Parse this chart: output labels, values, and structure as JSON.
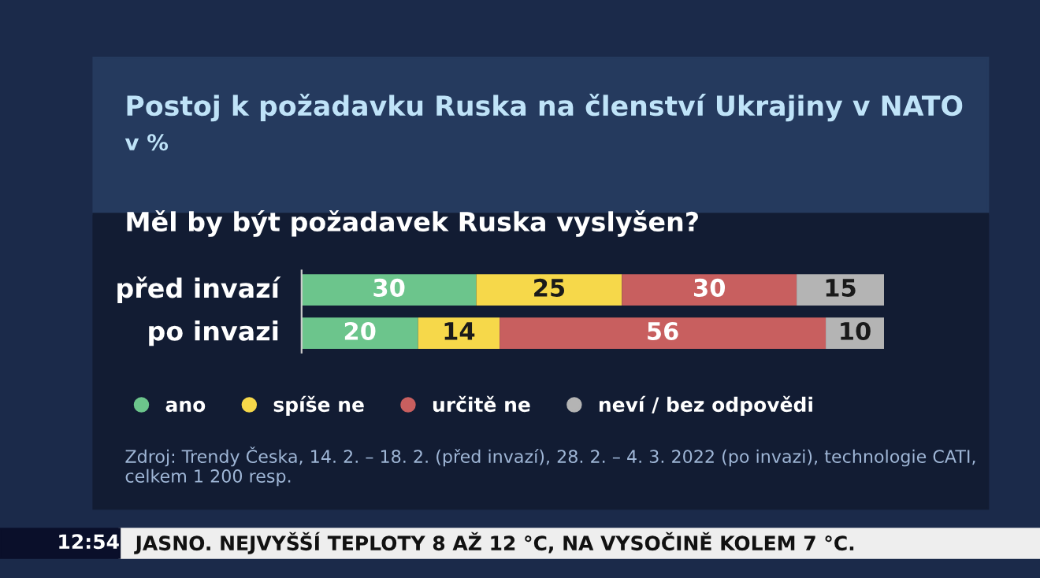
{
  "chart_data": {
    "type": "bar",
    "orientation": "horizontal",
    "stacked": true,
    "relative": false,
    "title": "Postoj k požadavku Ruska na členství Ukrajiny v NATO",
    "subtitle": "v %",
    "categories": [
      "před invazí",
      "po invazi"
    ],
    "series": [
      {
        "name": "ano",
        "color": "#6cc58c",
        "values": [
          30,
          20
        ]
      },
      {
        "name": "spíše ne",
        "color": "#f6d84a",
        "values": [
          25,
          14
        ]
      },
      {
        "name": "určitě ne",
        "color": "#c85f5f",
        "values": [
          30,
          56
        ]
      },
      {
        "name": "neví / bez odpovědi",
        "color": "#b4b4b4",
        "values": [
          15,
          10
        ]
      }
    ],
    "data_labels": true,
    "legend": "bottom",
    "grid": false,
    "tick_labels": false,
    "annotations": [
      "Měl by být požadavek Ruska vyslyšen?",
      "Zdroj: Trendy Česka, 14. 2. – 18. 2. (před invazí), 28. 2. – 4. 3. 2022 (po invazi), technologie CATI, celkem 1 200 resp.",
      "12:54",
      "JASNO. NEJVYŠŠÍ TEPLOTY 8 AŽ 12 °C, NA VYSOČINĚ KOLEM 7 °C."
    ]
  }
}
